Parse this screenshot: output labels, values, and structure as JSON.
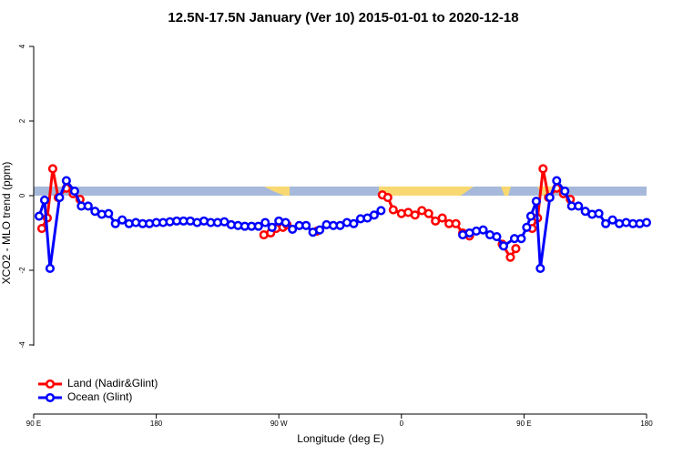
{
  "chart_data": {
    "type": "line",
    "title": "12.5N-17.5N January (Ver 10)   2015-01-01 to 2020-12-18",
    "xlabel": "Longitude (deg E)",
    "ylabel": "XCO2 - MLO trend (ppm)",
    "xlim": [
      90,
      540
    ],
    "xticks": [
      {
        "value": 90,
        "label": "90 E"
      },
      {
        "value": 180,
        "label": "180"
      },
      {
        "value": 270,
        "label": "90 W"
      },
      {
        "value": 360,
        "label": "0"
      },
      {
        "value": 450,
        "label": "90 E"
      },
      {
        "value": 540,
        "label": "180"
      }
    ],
    "ylim": [
      -5.6,
      4.4
    ],
    "yticks": [
      -4,
      -2,
      0,
      2,
      4
    ],
    "legend": "bottom-left",
    "series": [
      {
        "name": "Land (Nadir&Glint)",
        "color": "#ff0000",
        "x": [
          96,
          100,
          104,
          108,
          114,
          119,
          124,
          125,
          259,
          264,
          268,
          273,
          276,
          277,
          298,
          299,
          346,
          350,
          354,
          360,
          365,
          370,
          375,
          380,
          385,
          390,
          395,
          400,
          405,
          410,
          411,
          434,
          440,
          444,
          445,
          456,
          460,
          464,
          468,
          474,
          479,
          484
        ],
        "values": [
          -0.88,
          -0.6,
          0.72,
          -0.05,
          0.2,
          0.05,
          -0.1,
          null,
          -1.05,
          -1.0,
          -0.88,
          -0.85,
          -0.78,
          null,
          -0.95,
          null,
          0.02,
          -0.05,
          -0.38,
          -0.48,
          -0.45,
          -0.52,
          -0.4,
          -0.48,
          -0.68,
          -0.6,
          -0.75,
          -0.75,
          -1.0,
          -1.08,
          null,
          -1.3,
          -1.65,
          -1.42,
          null,
          -0.88,
          -0.6,
          0.72,
          -0.05,
          0.2,
          0.05,
          -0.1
        ]
      },
      {
        "name": "Ocean (Glint)",
        "color": "#0000ff",
        "x": [
          94,
          98,
          102,
          109,
          114,
          120,
          125,
          130,
          135,
          140,
          145,
          150,
          155,
          160,
          165,
          170,
          175,
          180,
          185,
          190,
          195,
          200,
          205,
          210,
          215,
          220,
          225,
          230,
          235,
          240,
          245,
          250,
          255,
          260,
          265,
          270,
          275,
          280,
          285,
          290,
          295,
          300,
          305,
          310,
          315,
          320,
          325,
          330,
          335,
          340,
          345,
          350,
          405,
          410,
          415,
          420,
          425,
          430,
          435,
          443,
          448,
          452,
          455,
          459,
          462,
          469,
          474,
          480,
          485,
          490,
          495,
          500,
          505,
          510,
          515,
          520,
          525,
          530,
          535,
          540
        ],
        "values": [
          -0.55,
          -0.12,
          -1.95,
          -0.05,
          0.4,
          0.12,
          -0.28,
          -0.28,
          -0.42,
          -0.5,
          -0.48,
          -0.75,
          -0.65,
          -0.75,
          -0.72,
          -0.75,
          -0.75,
          -0.72,
          -0.72,
          -0.7,
          -0.68,
          -0.68,
          -0.68,
          -0.72,
          -0.68,
          -0.72,
          -0.72,
          -0.7,
          -0.78,
          -0.8,
          -0.82,
          -0.82,
          -0.82,
          -0.72,
          -0.85,
          -0.68,
          -0.72,
          -0.9,
          -0.8,
          -0.8,
          -0.98,
          -0.92,
          -0.78,
          -0.8,
          -0.8,
          -0.72,
          -0.75,
          -0.62,
          -0.6,
          -0.52,
          -0.4,
          null,
          -1.05,
          -1.0,
          -0.95,
          -0.92,
          -1.05,
          -1.1,
          -1.35,
          -1.15,
          -1.15,
          -0.85,
          -0.55,
          -0.15,
          -1.95,
          -0.05,
          0.4,
          0.12,
          -0.28,
          -0.28,
          -0.42,
          -0.5,
          -0.48,
          -0.75,
          -0.65,
          -0.75,
          -0.72,
          -0.75,
          -0.75,
          -0.72
        ]
      }
    ]
  }
}
